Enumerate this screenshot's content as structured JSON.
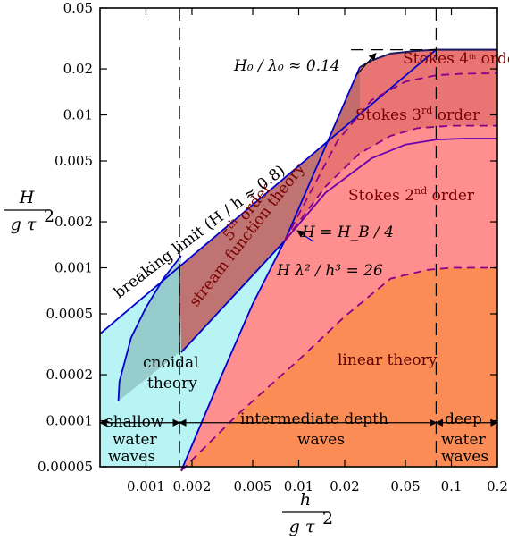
{
  "chart_data": {
    "type": "area",
    "title": "",
    "xlabel": {
      "numerator": "h",
      "denominator": "g τ"
    },
    "ylabel": {
      "numerator": "H",
      "denominator": "g τ"
    },
    "x_scale": "log",
    "y_scale": "log",
    "xlim": [
      0.0005,
      0.2
    ],
    "ylim": [
      5e-05,
      0.05
    ],
    "x_ticks": [
      0.001,
      0.002,
      0.005,
      0.01,
      0.02,
      0.05,
      0.1,
      0.2
    ],
    "x_tick_labels": [
      "0.001",
      "0.002",
      "0.005",
      "0.01",
      "0.02",
      "0.05",
      "0.1",
      "0.2"
    ],
    "y_ticks": [
      5e-05,
      0.0001,
      0.0002,
      0.0005,
      0.001,
      0.002,
      0.005,
      0.01,
      0.02,
      0.05
    ],
    "y_tick_labels": [
      "0.00005",
      "0.0001",
      "0.0002",
      "0.0005",
      "0.001",
      "0.002",
      "0.005",
      "0.01",
      "0.02",
      "0.05"
    ],
    "grid": false,
    "colors": {
      "cnoidal": "#b8f4f4",
      "stokes2": "#ff8e8e",
      "stokes_higher": "#e87474",
      "linear": "#fc8c56",
      "stream": "#c06c6c",
      "boundary": "#0000cc",
      "dashed": "#880088",
      "dark_line": "#1b1b5e",
      "label_dark": "#7a0000"
    },
    "curves": {
      "breaking_limit": {
        "x": [
          0.0005,
          0.0794,
          0.2
        ],
        "y": [
          0.00037,
          0.0267,
          0.0267
        ]
      },
      "stream_limit": {
        "x": [
          0.0017,
          0.0081,
          0.0251
        ],
        "y": [
          0.00028,
          0.0015,
          0.0205
        ]
      },
      "stokes3_4": {
        "x": [
          0.0081,
          0.018,
          0.03,
          0.05,
          0.08,
          0.12,
          0.2
        ],
        "y": [
          0.0015,
          0.0068,
          0.0125,
          0.0165,
          0.0182,
          0.0186,
          0.0187
        ]
      },
      "stokes2_3": {
        "x": [
          0.0081,
          0.015,
          0.025,
          0.04,
          0.06,
          0.1,
          0.2
        ],
        "y": [
          0.0015,
          0.0034,
          0.0056,
          0.0073,
          0.0082,
          0.0085,
          0.0085
        ]
      },
      "stokes4_top": {
        "x": [
          0.0251,
          0.03,
          0.04,
          0.06,
          0.0794,
          0.2
        ],
        "y": [
          0.0205,
          0.0227,
          0.0252,
          0.0263,
          0.0267,
          0.0267
        ]
      },
      "h_hb": {
        "x": [
          0.0081,
          0.015,
          0.03,
          0.05,
          0.08,
          0.12,
          0.2
        ],
        "y": [
          0.0015,
          0.0031,
          0.0052,
          0.0064,
          0.0069,
          0.007,
          0.007
        ]
      },
      "ursell": {
        "x": [
          0.0017,
          0.003,
          0.005,
          0.0081
        ],
        "y": [
          4.7e-05,
          0.00018,
          0.00058,
          0.0015
        ]
      },
      "linear_boundary": {
        "x": [
          0.0017,
          0.004,
          0.01,
          0.02,
          0.04,
          0.07,
          0.1,
          0.2
        ],
        "y": [
          4.7e-05,
          0.00011,
          0.00025,
          0.00048,
          0.00085,
          0.00097,
          0.001,
          0.001
        ]
      },
      "cnoidal_limit": {
        "x": [
          0.00066,
          0.00067,
          0.0008,
          0.001,
          0.0013,
          0.0017
        ],
        "y": [
          0.000135,
          0.00018,
          0.00035,
          0.00055,
          0.00085,
          0.0012
        ]
      },
      "shallow_limit_x": 0.00166,
      "deep_limit_x": 0.0794,
      "wavelength_steepness_y": 0.0267
    },
    "annotations": {
      "stokes4": {
        "prefix": "Stokes 4",
        "sup": "th",
        "suffix": " order"
      },
      "stokes3": {
        "prefix": "Stokes 3",
        "sup": "rd",
        "suffix": " order"
      },
      "stokes2": {
        "prefix": "Stokes 2",
        "sup": "nd",
        "suffix": " order"
      },
      "stream_line1": {
        "prefix": "5",
        "sup": "th",
        "suffix": " order"
      },
      "stream_line2": "stream function theory",
      "breaking": "breaking limit (H / h ≈ 0.8)",
      "steepness": "H₀ / λ₀ ≈ 0.14",
      "h_hb": "H = H_B / 4",
      "ursell": "H λ² / h³ = 26",
      "cnoidal_line1": "cnoidal",
      "cnoidal_line2": "theory",
      "linear": "linear theory",
      "shallow_line1": "shallow",
      "shallow_line2": "water",
      "shallow_line3": "waves",
      "intermediate_line1": "intermediate depth",
      "intermediate_line2": "waves",
      "deep_line1": "deep",
      "deep_line2": "water",
      "deep_line3": "waves"
    }
  }
}
